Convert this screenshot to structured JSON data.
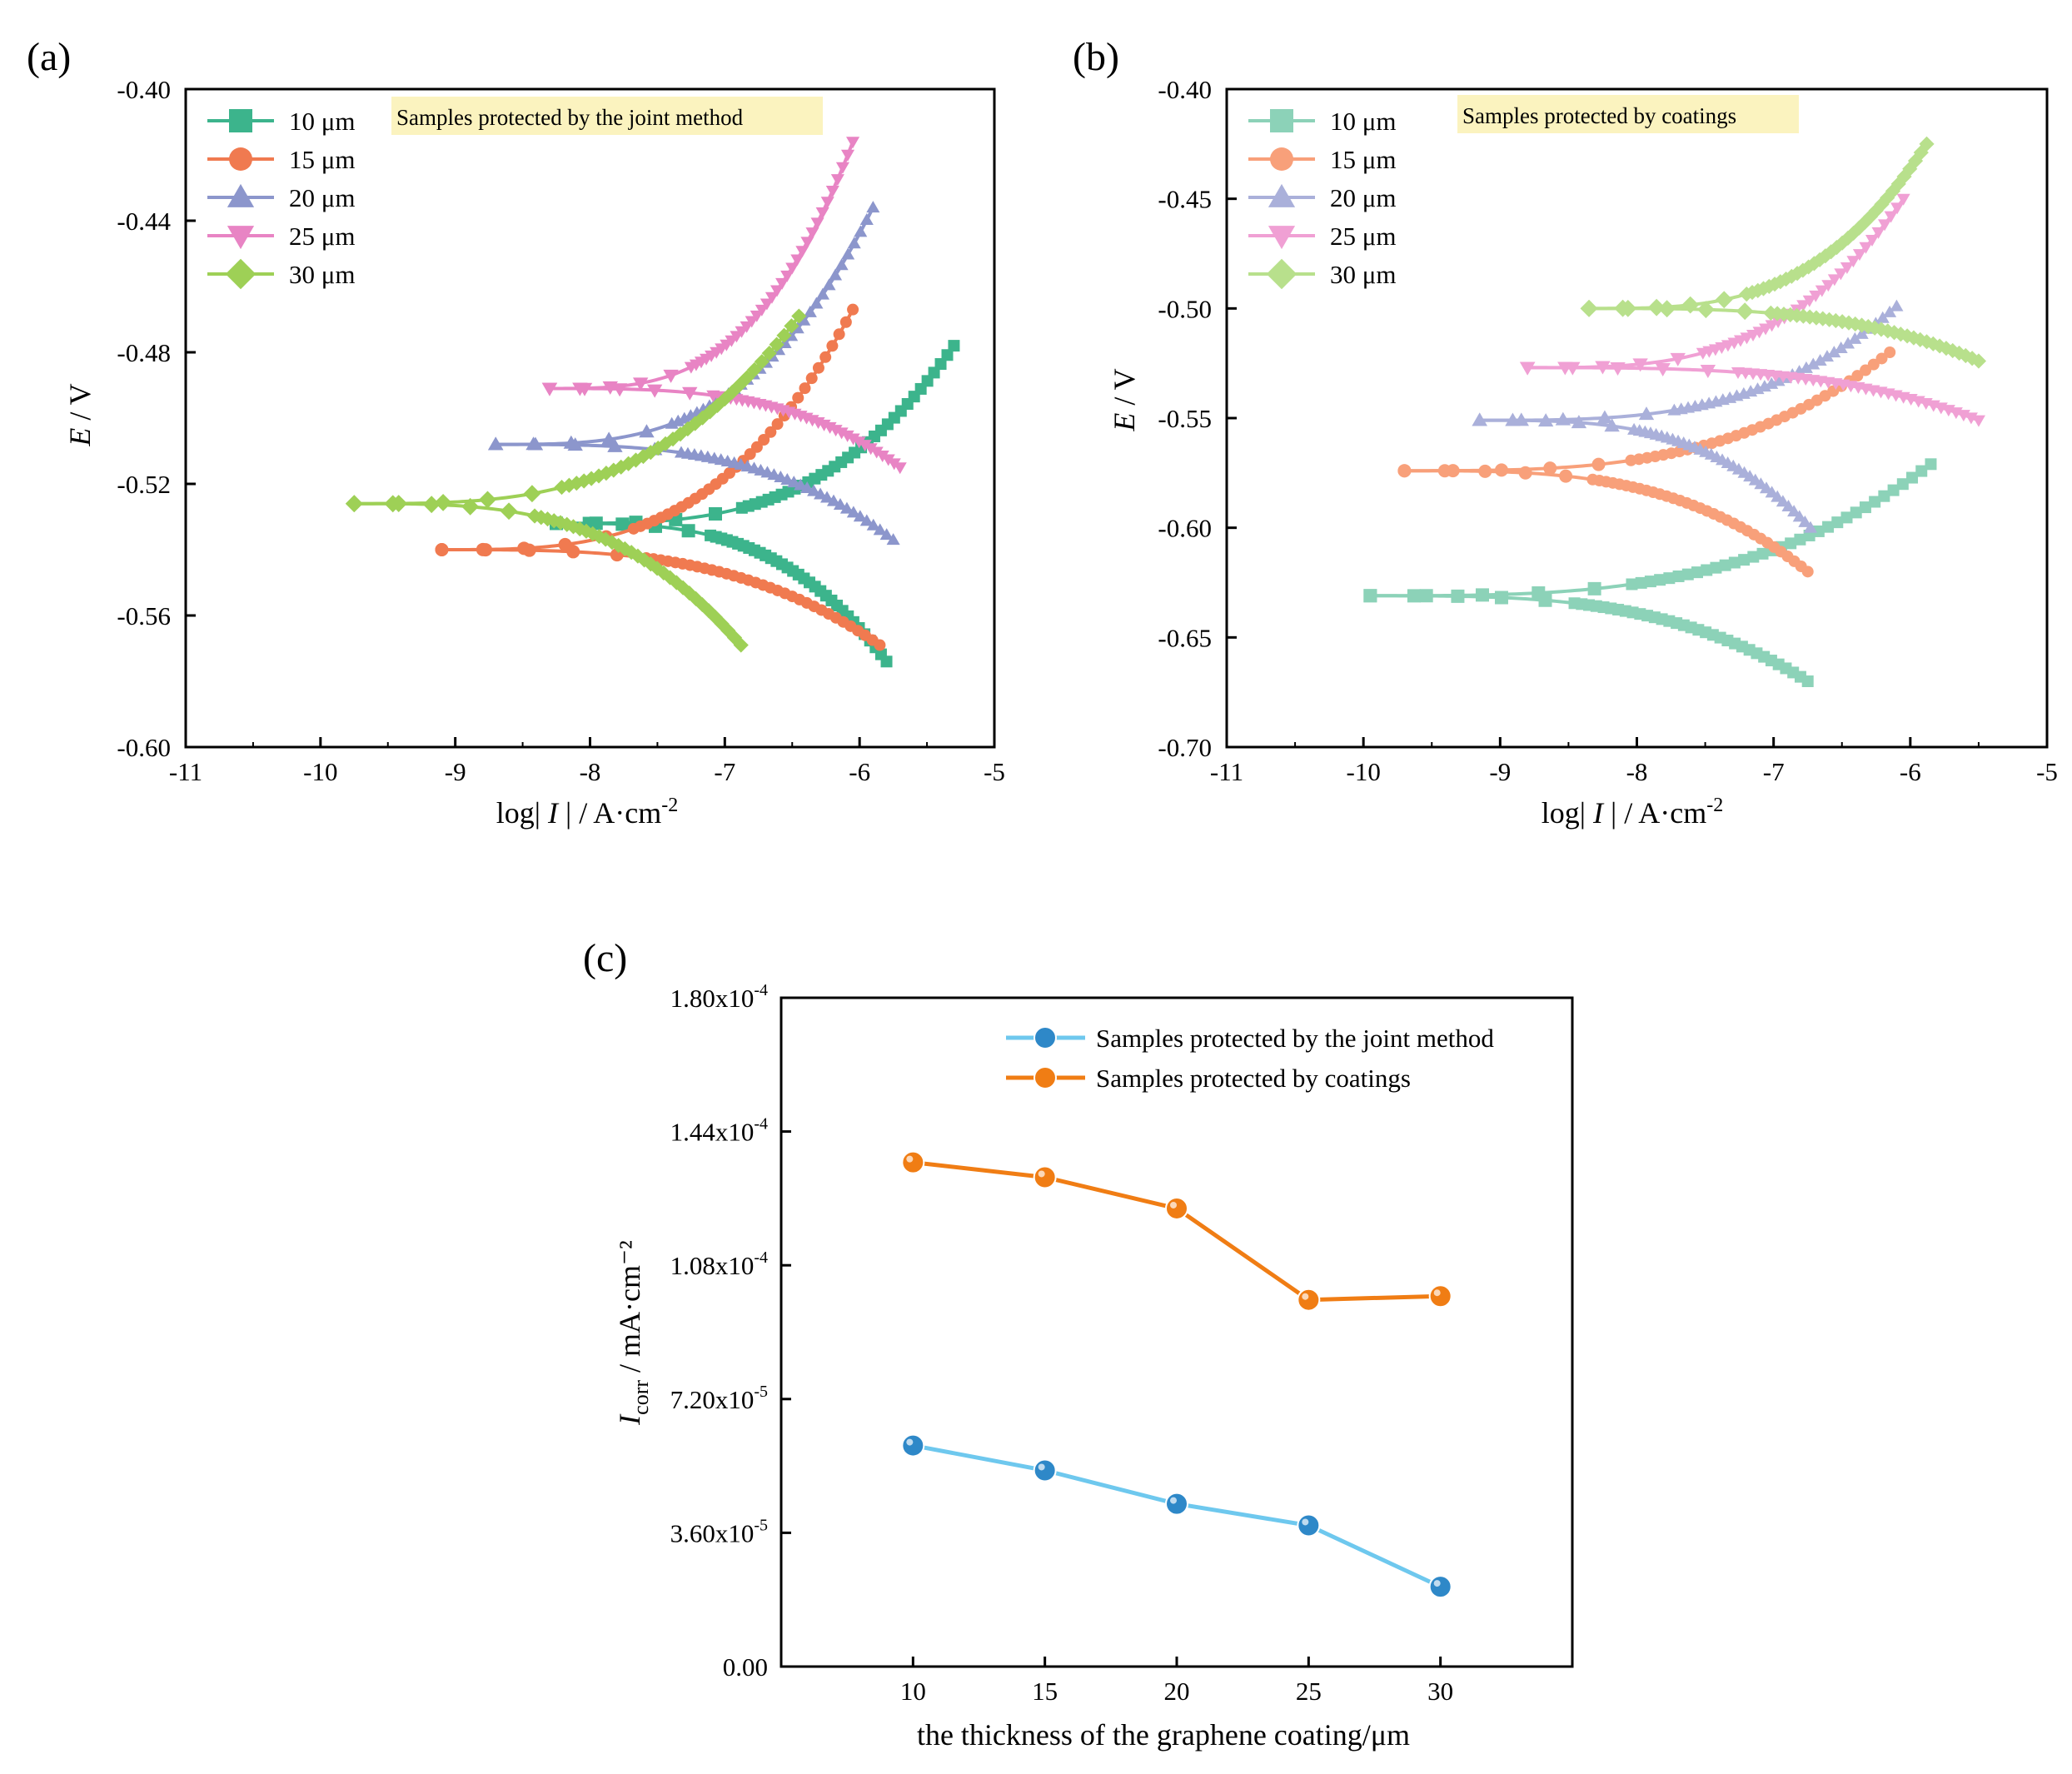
{
  "colors": {
    "10": "#3cb48c",
    "15": "#f07a50",
    "20": "#8c96cc",
    "25": "#e884c4",
    "30": "#9ed056",
    "b10": "#8cd2b8",
    "b15": "#f8a07a",
    "b20": "#aab0da",
    "b25": "#f0a0d4",
    "b30": "#b8e08c",
    "joint": "#6ec8ee",
    "joint_marker": "#2e88c8",
    "coat": "#f07d14",
    "note_bg": "#fbf3bf"
  },
  "chart_data": [
    {
      "type": "line",
      "panel": "(a)",
      "annotation": "Samples protected by the joint method",
      "xlabel": "log| I | / A·cm⁻²",
      "ylabel": "E / V",
      "xlim": [
        -11,
        -5
      ],
      "ylim": [
        -0.6,
        -0.4
      ],
      "xticks": [
        "-11",
        "-10",
        "-9",
        "-8",
        "-7",
        "-6",
        "-5"
      ],
      "yticks": [
        "-0.60",
        "-0.56",
        "-0.52",
        "-0.48",
        "-0.44",
        "-0.40"
      ],
      "series": [
        {
          "name": "10 μm",
          "color_key": "10",
          "marker": "square",
          "ecorr": -0.532,
          "anodic": {
            "x0": -8.25,
            "x1": -5.3,
            "e_end": -0.478
          },
          "cathodic": {
            "x0": -8.25,
            "x1": -5.8,
            "e_end": -0.574
          }
        },
        {
          "name": "15 μm",
          "color_key": "15",
          "marker": "circle",
          "ecorr": -0.54,
          "anodic": {
            "x0": -9.1,
            "x1": -6.05,
            "e_end": -0.467
          },
          "cathodic": {
            "x0": -9.1,
            "x1": -5.85,
            "e_end": -0.569
          }
        },
        {
          "name": "20 μm",
          "color_key": "20",
          "marker": "triangle-up",
          "ecorr": -0.508,
          "anodic": {
            "x0": -8.7,
            "x1": -5.9,
            "e_end": -0.436
          },
          "cathodic": {
            "x0": -8.7,
            "x1": -5.75,
            "e_end": -0.537
          }
        },
        {
          "name": "25 μm",
          "color_key": "25",
          "marker": "triangle-down",
          "ecorr": -0.491,
          "anodic": {
            "x0": -8.3,
            "x1": -6.05,
            "e_end": -0.416
          },
          "cathodic": {
            "x0": -8.3,
            "x1": -5.7,
            "e_end": -0.515
          }
        },
        {
          "name": "30 μm",
          "color_key": "30",
          "marker": "diamond",
          "ecorr": -0.526,
          "anodic": {
            "x0": -9.75,
            "x1": -6.45,
            "e_end": -0.469
          },
          "cathodic": {
            "x0": -9.75,
            "x1": -6.88,
            "e_end": -0.569
          }
        }
      ]
    },
    {
      "type": "line",
      "panel": "(b)",
      "annotation": "Samples protected by coatings",
      "xlabel": "log| I | / A·cm⁻²",
      "ylabel": "E / V",
      "xlim": [
        -11,
        -5
      ],
      "ylim": [
        -0.7,
        -0.4
      ],
      "xticks": [
        "-11",
        "-10",
        "-9",
        "-8",
        "-7",
        "-6",
        "-5"
      ],
      "yticks": [
        "-0.70",
        "-0.65",
        "-0.60",
        "-0.55",
        "-0.50",
        "-0.45",
        "-0.40"
      ],
      "series": [
        {
          "name": "10 μm",
          "color_key": "b10",
          "marker": "square",
          "ecorr": -0.631,
          "anodic": {
            "x0": -9.95,
            "x1": -5.85,
            "e_end": -0.571
          },
          "cathodic": {
            "x0": -9.95,
            "x1": -6.75,
            "e_end": -0.67
          }
        },
        {
          "name": "15 μm",
          "color_key": "b15",
          "marker": "circle",
          "ecorr": -0.574,
          "anodic": {
            "x0": -9.7,
            "x1": -6.15,
            "e_end": -0.52
          },
          "cathodic": {
            "x0": -9.7,
            "x1": -6.75,
            "e_end": -0.62
          }
        },
        {
          "name": "20 μm",
          "color_key": "b20",
          "marker": "triangle-up",
          "ecorr": -0.551,
          "anodic": {
            "x0": -9.15,
            "x1": -6.1,
            "e_end": -0.499
          },
          "cathodic": {
            "x0": -9.15,
            "x1": -6.73,
            "e_end": -0.6
          }
        },
        {
          "name": "25 μm",
          "color_key": "b25",
          "marker": "triangle-down",
          "ecorr": -0.527,
          "anodic": {
            "x0": -8.8,
            "x1": -6.05,
            "e_end": -0.45
          },
          "cathodic": {
            "x0": -8.8,
            "x1": -5.5,
            "e_end": -0.551
          }
        },
        {
          "name": "30 μm",
          "color_key": "b30",
          "marker": "diamond",
          "ecorr": -0.5,
          "anodic": {
            "x0": -8.35,
            "x1": -5.88,
            "e_end": -0.425
          },
          "cathodic": {
            "x0": -8.35,
            "x1": -5.5,
            "e_end": -0.524
          }
        }
      ]
    },
    {
      "type": "line",
      "panel": "(c)",
      "xlabel": "the thickness of the graphene coating/μm",
      "ylabel_main": "I",
      "ylabel_sub": "corr",
      "ylabel_rest": " / mA·cm⁻²",
      "x": [
        10,
        15,
        20,
        25,
        30
      ],
      "xticks": [
        "10",
        "15",
        "20",
        "25",
        "30"
      ],
      "xlim": [
        5,
        35
      ],
      "ylim": [
        0,
        0.00018
      ],
      "yticks": [
        {
          "value": 0,
          "mant": "0.00",
          "exp": ""
        },
        {
          "value": 3.6e-05,
          "mant": "3.60x10",
          "exp": "-5"
        },
        {
          "value": 7.2e-05,
          "mant": "7.20x10",
          "exp": "-5"
        },
        {
          "value": 0.000108,
          "mant": "1.08x10",
          "exp": "-4"
        },
        {
          "value": 0.000144,
          "mant": "1.44x10",
          "exp": "-4"
        },
        {
          "value": 0.00018,
          "mant": "1.80x10",
          "exp": "-4"
        }
      ],
      "series": [
        {
          "name": "Samples protected by the joint method",
          "color_key": "joint",
          "marker_key": "joint_marker",
          "values": [
            5.95e-05,
            5.28e-05,
            4.38e-05,
            3.8e-05,
            2.15e-05
          ]
        },
        {
          "name": "Samples protected by coatings",
          "color_key": "coat",
          "marker_key": "coat",
          "values": [
            0.0001357,
            0.0001317,
            0.0001233,
            9.87e-05,
            9.97e-05
          ]
        }
      ]
    }
  ]
}
